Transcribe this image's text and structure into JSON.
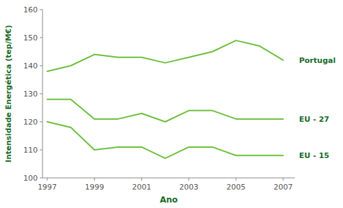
{
  "chart_data": {
    "type": "line",
    "xlabel": "Ano",
    "ylabel": "Intensidade Energética (tep/M€)",
    "x": [
      1997,
      1998,
      1999,
      2000,
      2001,
      2002,
      2003,
      2004,
      2005,
      2006,
      2007
    ],
    "series": [
      {
        "name": "Portugal",
        "color": "#6abf3b",
        "values": [
          138,
          140,
          144,
          143,
          143,
          141,
          143,
          145,
          149,
          147,
          142
        ]
      },
      {
        "name": "EU - 27",
        "color": "#6abf3b",
        "values": [
          128,
          128,
          121,
          121,
          123,
          120,
          124,
          124,
          121,
          121,
          121
        ]
      },
      {
        "name": "EU - 15",
        "color": "#6abf3b",
        "values": [
          120,
          118,
          110,
          111,
          111,
          107,
          111,
          111,
          108,
          108,
          108
        ]
      }
    ],
    "xlim": [
      1996.8,
      2007.5
    ],
    "xticks": [
      1997,
      1999,
      2001,
      2003,
      2005,
      2007
    ],
    "ylim": [
      100,
      160
    ],
    "yticks": [
      100,
      110,
      120,
      130,
      140,
      150,
      160
    ],
    "grid": false
  }
}
